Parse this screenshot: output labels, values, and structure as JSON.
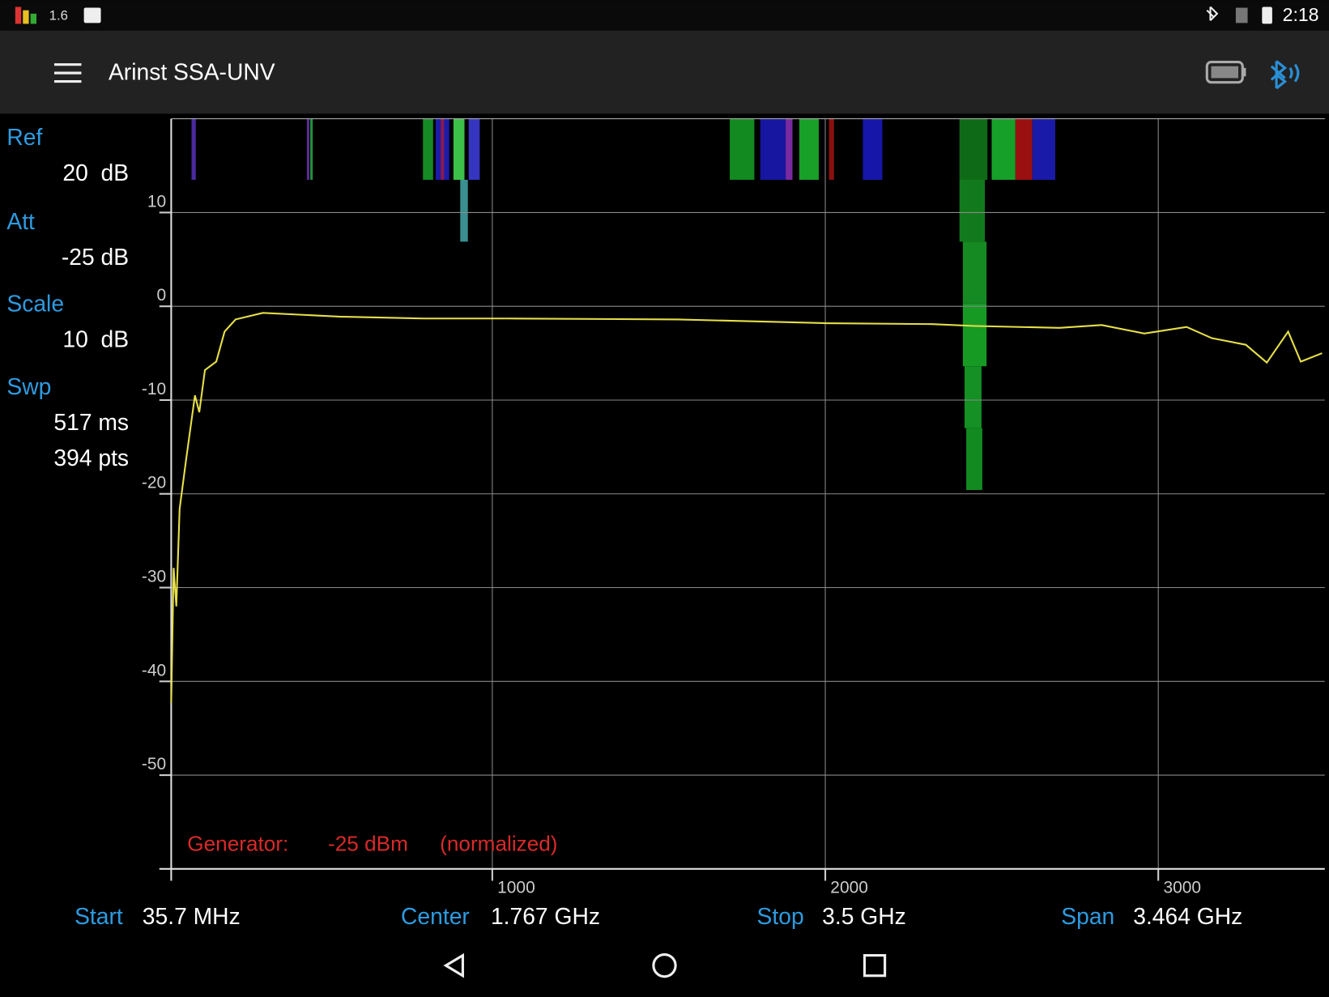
{
  "status_bar": {
    "indicator": "1.6",
    "time": "2:18"
  },
  "app_bar": {
    "title": "Arinst SSA-UNV"
  },
  "settings": [
    {
      "label": "Ref",
      "values": [
        "20  dB"
      ]
    },
    {
      "label": "Att",
      "values": [
        "-25 dB"
      ]
    },
    {
      "label": "Scale",
      "values": [
        "10  dB"
      ]
    },
    {
      "label": "Swp",
      "values": [
        "517 ms",
        "394 pts"
      ]
    }
  ],
  "chart_data": {
    "type": "line",
    "x": [
      35.7,
      43,
      51,
      61,
      81,
      107,
      120,
      137,
      171,
      196,
      229,
      311,
      540,
      794,
      1049,
      1558,
      2000,
      2321,
      2449,
      2703,
      2830,
      2958,
      3085,
      3161,
      3263,
      3326,
      3390,
      3428,
      3492
    ],
    "values": [
      -42.3,
      -27.9,
      -32,
      -21.6,
      -16.2,
      -9.5,
      -11.3,
      -6.8,
      -5.9,
      -2.7,
      -1.4,
      -0.7,
      -1.1,
      -1.3,
      -1.3,
      -1.4,
      -1.8,
      -1.9,
      -2.1,
      -2.3,
      -2.0,
      -2.9,
      -2.2,
      -3.4,
      -4.1,
      -6.0,
      -2.7,
      -5.9,
      -5.0
    ],
    "color": "#e6df48",
    "xlim": [
      35.7,
      3500
    ],
    "ylim": [
      -60,
      20
    ],
    "xticks": [
      1000,
      2000,
      3000
    ],
    "yticks": [
      10,
      0,
      -10,
      -20,
      -30,
      -40,
      -50
    ],
    "grid": true,
    "annotation": [
      "Generator:",
      "-25 dBm",
      "(normalized)"
    ]
  },
  "footer": [
    {
      "label": "Start",
      "value": "35.7 MHz"
    },
    {
      "label": "Center",
      "value": "1.767 GHz"
    },
    {
      "label": "Stop",
      "value": "3.5 GHz"
    },
    {
      "label": "Span",
      "value": "3.464 GHz"
    }
  ]
}
